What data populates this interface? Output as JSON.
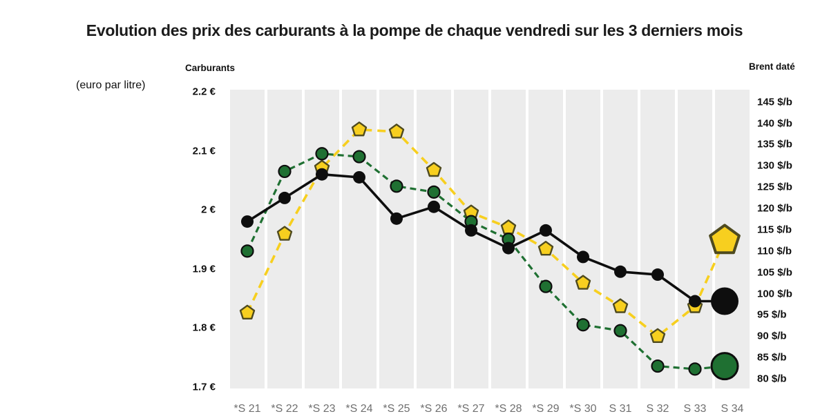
{
  "title": "Evolution des prix des carburants à la pompe de chaque vendredi sur les 3 derniers mois",
  "left_axis": {
    "header": "Carburants",
    "unit_note": "(euro par litre)",
    "ticks": [
      {
        "label": "2.2 €",
        "value": 2.2
      },
      {
        "label": "2.1 €",
        "value": 2.1
      },
      {
        "label": "2 €",
        "value": 2.0
      },
      {
        "label": "1.9 €",
        "value": 1.9
      },
      {
        "label": "1.8 €",
        "value": 1.8
      },
      {
        "label": "1.7 €",
        "value": 1.7
      }
    ]
  },
  "right_axis": {
    "header": "Brent daté",
    "ticks": [
      {
        "label": "145 $/b",
        "value": 145
      },
      {
        "label": "140 $/b",
        "value": 140
      },
      {
        "label": "135 $/b",
        "value": 135
      },
      {
        "label": "130 $/b",
        "value": 130
      },
      {
        "label": "125 $/b",
        "value": 125
      },
      {
        "label": "120 $/b",
        "value": 120
      },
      {
        "label": "115 $/b",
        "value": 115
      },
      {
        "label": "110 $/b",
        "value": 110
      },
      {
        "label": "105 $/b",
        "value": 105
      },
      {
        "label": "100 $/b",
        "value": 100
      },
      {
        "label": "95 $/b",
        "value": 95
      },
      {
        "label": "90 $/b",
        "value": 90
      },
      {
        "label": "85 $/b",
        "value": 85
      },
      {
        "label": "80 $/b",
        "value": 80
      }
    ]
  },
  "chart_data": {
    "type": "line",
    "categories": [
      "*S 21",
      "*S 22",
      "*S 23",
      "*S 24",
      "*S 25",
      "*S 26",
      "*S 27",
      "*S 28",
      "*S 29",
      "*S 30",
      "S 31",
      "S 32",
      "S 33",
      "S 34"
    ],
    "series": [
      {
        "name": "carburant-ligne-noire",
        "axis": "left",
        "unit": "euro par litre",
        "color": "#0e0e0e",
        "line_style": "solid",
        "marker": "circle",
        "values": [
          1.98,
          2.02,
          2.06,
          2.055,
          1.985,
          2.005,
          1.965,
          1.935,
          1.965,
          1.92,
          1.895,
          1.89,
          1.845,
          1.845
        ]
      },
      {
        "name": "carburant-ligne-verte",
        "axis": "left",
        "unit": "euro par litre",
        "color": "#1f7032",
        "line_style": "dashed",
        "marker": "circle",
        "values": [
          1.93,
          2.065,
          2.095,
          2.09,
          2.04,
          2.03,
          1.98,
          1.95,
          1.87,
          1.805,
          1.795,
          1.735,
          1.73,
          1.735
        ]
      },
      {
        "name": "brent-date",
        "axis": "right",
        "unit": "$/b",
        "color": "#f7cf1f",
        "line_style": "dashed",
        "marker": "pentagon",
        "values": [
          95.5,
          114,
          129.5,
          138.5,
          138,
          129,
          119,
          115.5,
          110.5,
          102.5,
          97,
          90,
          97,
          112.5
        ]
      }
    ],
    "left_ylim": [
      1.7,
      2.2
    ],
    "right_ylim": [
      80,
      145
    ],
    "grid": "vertical-gray-bands",
    "legend": "large-end-of-line-markers",
    "marker_stroke_colors": {
      "pentagon": "#4e4a1f",
      "green_circle": "#0e0e0e"
    },
    "band_color": "#ececec"
  }
}
